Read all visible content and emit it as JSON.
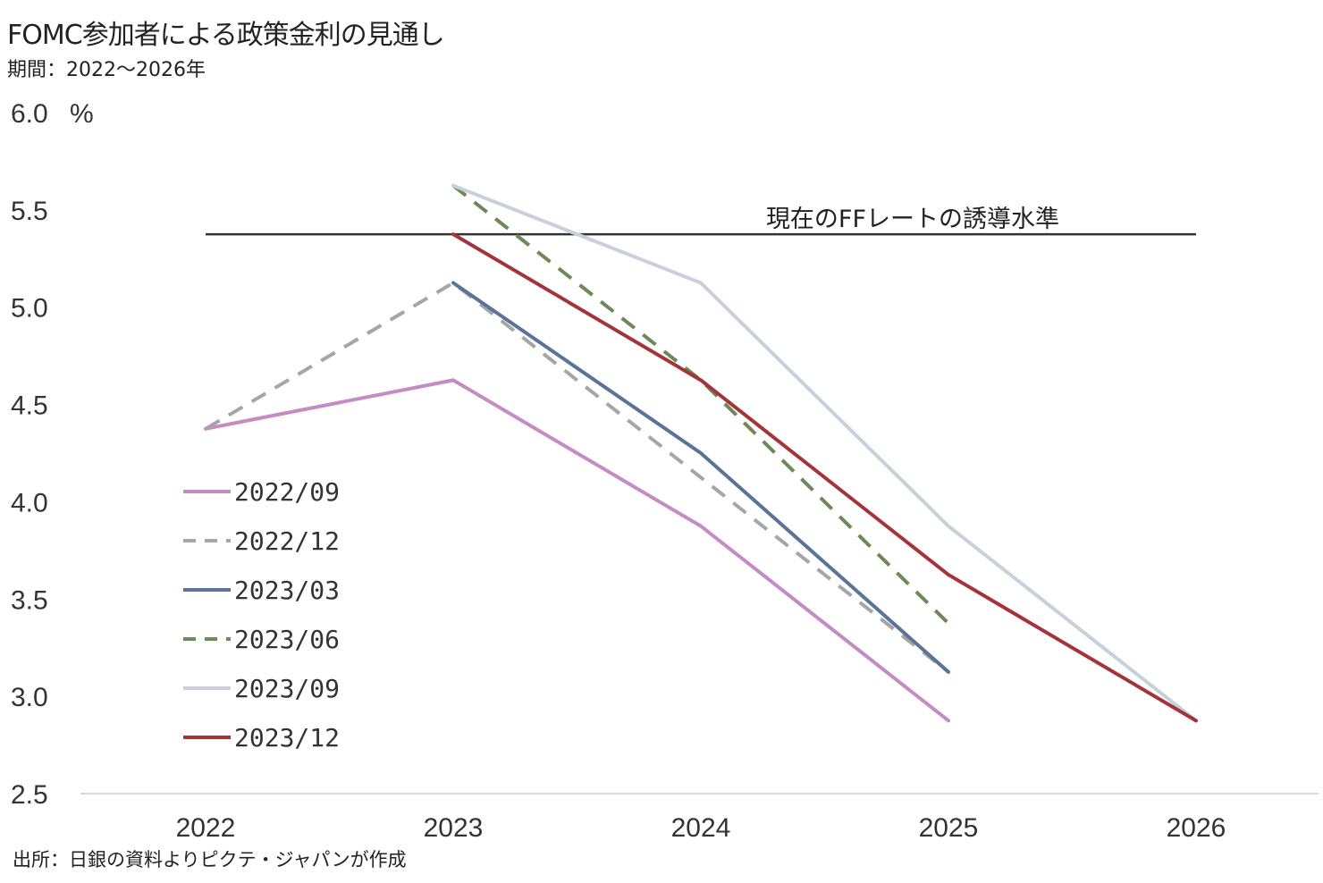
{
  "title": "FOMC参加者による政策金利の見通し",
  "subtitle": "期間：2022～2026年",
  "source": "出所：日銀の資料よりピクテ・ジャパンが作成",
  "chart_data": {
    "type": "line",
    "x": [
      "2022",
      "2023",
      "2024",
      "2025",
      "2026"
    ],
    "ylim": [
      2.5,
      6.0
    ],
    "yticks": [
      "6.0",
      "5.5",
      "5.0",
      "4.5",
      "4.0",
      "3.5",
      "3.0",
      "2.5"
    ],
    "yunit": "%",
    "grid": false,
    "legend_position": "bottom-left",
    "series": [
      {
        "name": "2022/09",
        "color": "#c48bc4",
        "dash": false,
        "values": [
          4.375,
          4.625,
          3.875,
          2.875,
          null
        ]
      },
      {
        "name": "2022/12",
        "color": "#a6a6a6",
        "dash": true,
        "values": [
          4.375,
          5.125,
          4.125,
          3.125,
          null
        ]
      },
      {
        "name": "2023/03",
        "color": "#5a7399",
        "dash": false,
        "values": [
          null,
          5.125,
          4.25,
          3.125,
          null
        ]
      },
      {
        "name": "2023/06",
        "color": "#6b8a57",
        "dash": true,
        "values": [
          null,
          5.625,
          4.625,
          3.375,
          null
        ]
      },
      {
        "name": "2023/09",
        "color": "#c8d0dc",
        "dash": false,
        "values": [
          null,
          5.625,
          5.125,
          3.875,
          2.875
        ]
      },
      {
        "name": "2023/12",
        "color": "#a3343a",
        "dash": false,
        "values": [
          null,
          5.375,
          4.625,
          3.625,
          2.875
        ]
      }
    ],
    "reference_line": {
      "value": 5.375,
      "label": "現在のFFレートの誘導水準",
      "color": "#333333"
    }
  }
}
